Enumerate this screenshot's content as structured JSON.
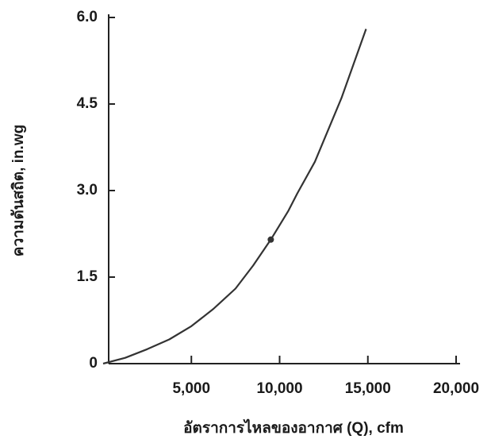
{
  "chart_data": {
    "type": "line",
    "x_label": "อัตราการไหลของอากาศ (Q), cfm",
    "y_label": "ความดันสถิต, in.wg",
    "xlim": [
      0,
      20000
    ],
    "xticks": [
      {
        "value": 5000,
        "label": "5,000"
      },
      {
        "value": 10000,
        "label": "10,000"
      },
      {
        "value": 15000,
        "label": "15,000"
      },
      {
        "value": 20000,
        "label": "20,000"
      }
    ],
    "ylim": [
      0,
      6
    ],
    "yticks": [
      0,
      1.5,
      {
        "value": 3,
        "label": "3.0"
      },
      4.5,
      {
        "value": 6,
        "label": "6.0"
      }
    ],
    "series": [
      {
        "color": "#333333",
        "x": [
          0,
          1250,
          2500,
          3750,
          5000,
          6250,
          7500,
          8500,
          9500,
          10500,
          11000,
          12000,
          13500,
          14900
        ],
        "values": [
          0,
          0.1,
          0.25,
          0.42,
          0.65,
          0.95,
          1.3,
          1.7,
          2.15,
          2.65,
          2.95,
          3.5,
          4.6,
          5.8
        ]
      }
    ],
    "operating_point": {
      "x": 9500,
      "y": 2.15
    }
  }
}
